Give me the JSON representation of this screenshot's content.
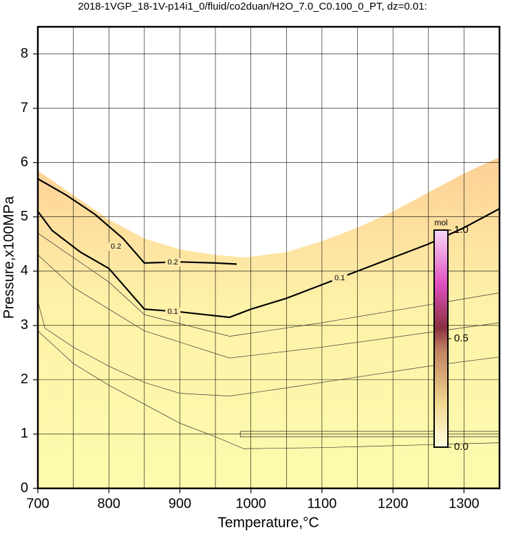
{
  "chart_data": {
    "type": "contour",
    "title": "2018-1VGP_18-1V-p14i1_0/fluid/co2duan/H2O_7.0_C0.100_0_PT, dz=0.01:",
    "x_label": "Temperature,°C",
    "y_label": "Pressure,x100MPa",
    "xlim": [
      700,
      1350
    ],
    "ylim": [
      0,
      8.5
    ],
    "xticks": [
      700,
      800,
      900,
      1000,
      1100,
      1200,
      1300
    ],
    "yticks": [
      0,
      1,
      2,
      3,
      4,
      5,
      6,
      7,
      8
    ],
    "xgrid": [
      700,
      750,
      800,
      850,
      900,
      950,
      1000,
      1050,
      1100,
      1150,
      1200,
      1250,
      1300,
      1350
    ],
    "grid": true,
    "field_boundary": {
      "x": [
        700,
        750,
        800,
        850,
        900,
        950,
        990,
        1050,
        1100,
        1150,
        1200,
        1250,
        1300,
        1350
      ],
      "y": [
        5.85,
        5.4,
        4.95,
        4.6,
        4.4,
        4.3,
        4.25,
        4.35,
        4.55,
        4.8,
        5.1,
        5.45,
        5.8,
        6.1
      ]
    },
    "series": [
      {
        "name": "0.2",
        "color": "#000000",
        "x": [
          700,
          740,
          780,
          820,
          850,
          900,
          950,
          980
        ],
        "values": [
          5.7,
          5.4,
          5.05,
          4.6,
          4.15,
          4.17,
          4.15,
          4.13
        ]
      },
      {
        "name": "0.1",
        "color": "#000000",
        "x": [
          700,
          720,
          760,
          800,
          850,
          900,
          970,
          1000,
          1050,
          1100,
          1150,
          1200,
          1250,
          1300,
          1350
        ],
        "values": [
          5.1,
          4.75,
          4.35,
          4.05,
          3.3,
          3.25,
          3.15,
          3.3,
          3.5,
          3.75,
          4.0,
          4.25,
          4.5,
          4.8,
          5.15
        ]
      },
      {
        "color": "#333333",
        "x": [
          700,
          800,
          850,
          970,
          1100,
          1350
        ],
        "values": [
          4.7,
          3.8,
          3.2,
          2.8,
          3.05,
          3.6
        ]
      },
      {
        "color": "#333333",
        "x": [
          700,
          750,
          850,
          970,
          1100,
          1350
        ],
        "values": [
          4.3,
          3.7,
          2.9,
          2.4,
          2.6,
          3.05
        ]
      },
      {
        "color": "#333333",
        "x": [
          700,
          710,
          750,
          800,
          850,
          900,
          970,
          1050,
          1150,
          1250,
          1350
        ],
        "values": [
          3.45,
          2.95,
          2.6,
          2.25,
          1.95,
          1.75,
          1.7,
          1.85,
          2.05,
          2.25,
          2.42
        ]
      },
      {
        "color": "#333333",
        "x": [
          700,
          750,
          800,
          900,
          950,
          990,
          1100,
          1350
        ],
        "values": [
          2.9,
          2.3,
          1.9,
          1.2,
          0.95,
          0.73,
          0.75,
          0.84
        ]
      }
    ],
    "contour_labels": [
      {
        "series": 0,
        "x": 810,
        "y": 4.45
      },
      {
        "series": 0,
        "x": 890,
        "y": 4.16
      },
      {
        "series": 1,
        "x": 890,
        "y": 3.25
      },
      {
        "series": 1,
        "x": 1125,
        "y": 3.87
      }
    ],
    "colorbar": {
      "label": "mol",
      "lim": [
        0,
        1
      ],
      "ticks": [
        {
          "value": 0,
          "label": "0.0"
        },
        {
          "value": 0.5,
          "label": "0.5"
        },
        {
          "value": 1,
          "label": "1.0"
        }
      ]
    }
  }
}
